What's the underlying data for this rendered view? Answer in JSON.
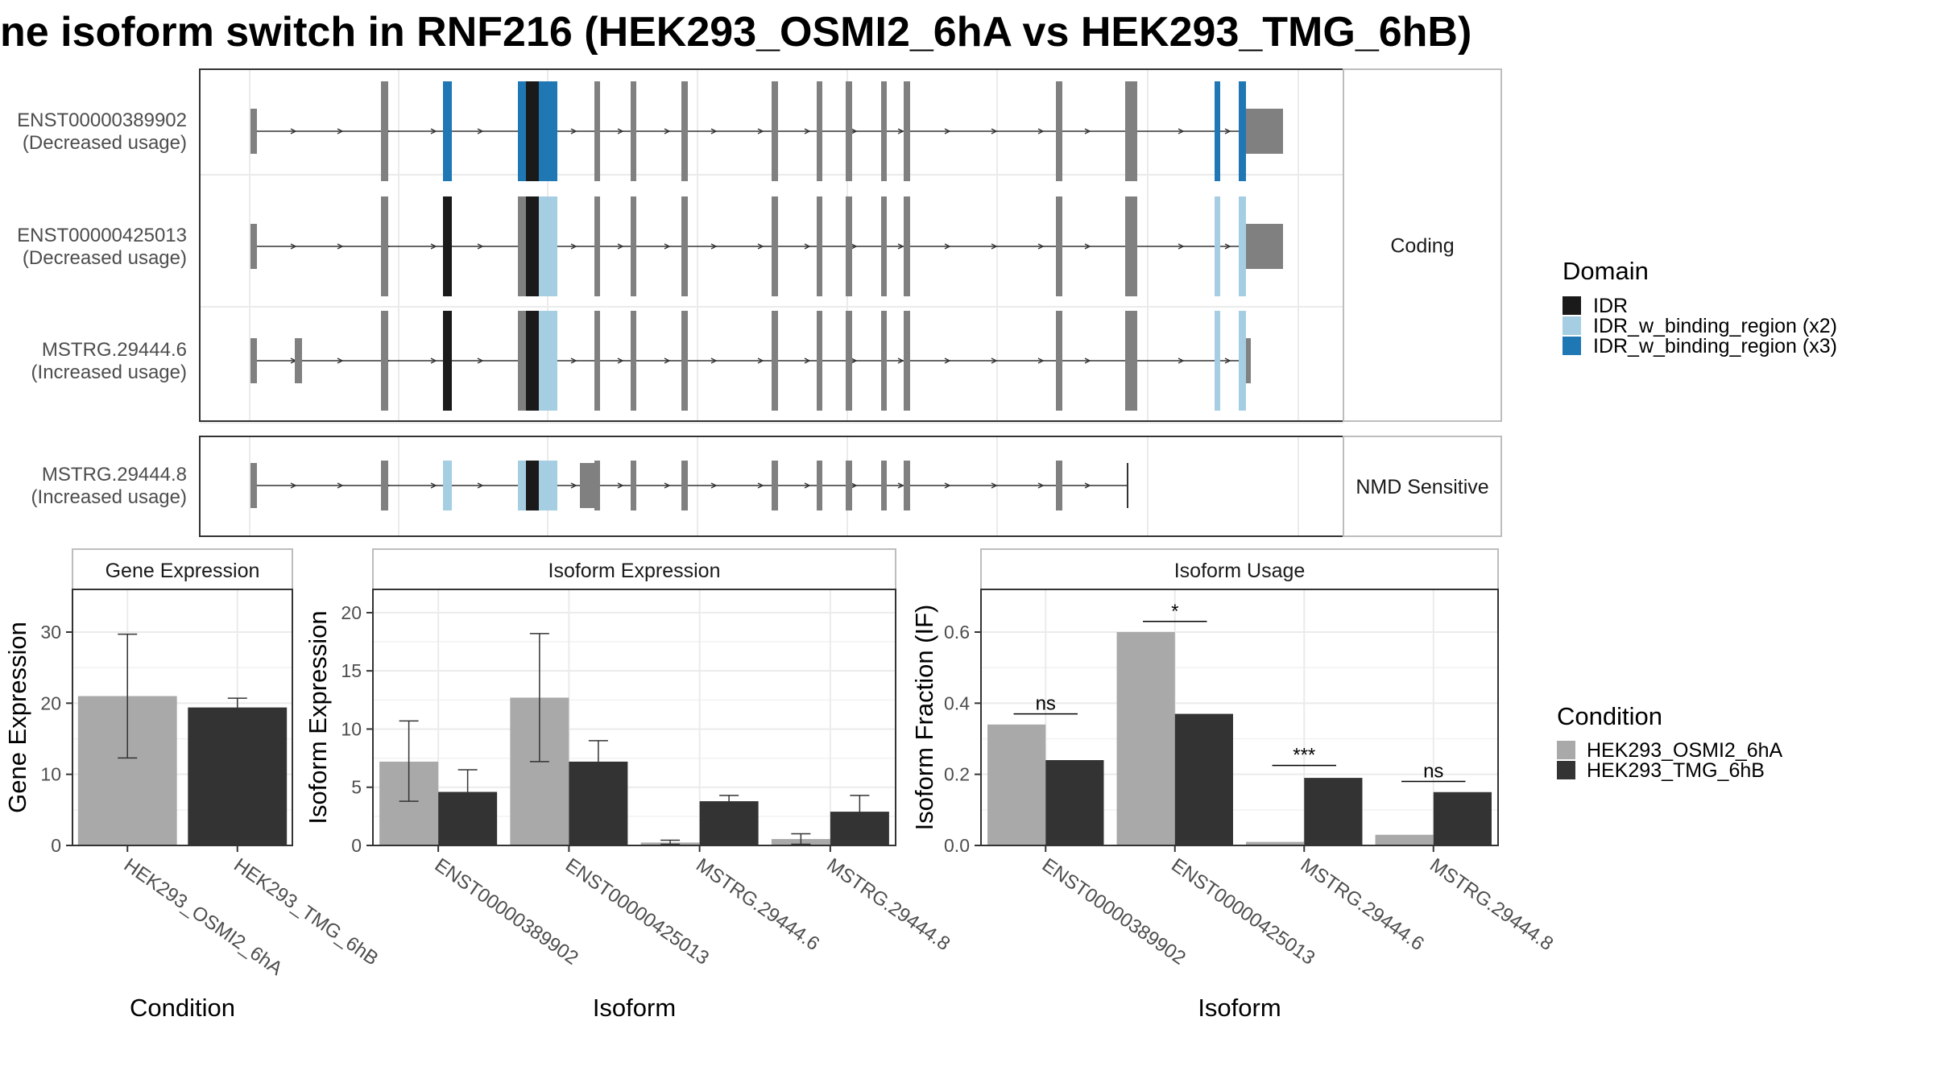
{
  "title": "ne isoform switch in RNF216 (HEK293_OSMI2_6hA vs HEK293_TMG_6hB)",
  "colors": {
    "exon": "#808080",
    "IDR": "#1a1a1a",
    "IDR_w_binding_region (x2)": "#a6cee3",
    "IDR_w_binding_region (x3)": "#1f78b4",
    "condition_a": "#a9a9a9",
    "condition_b": "#333333"
  },
  "transcript_panels": {
    "strip_labels": [
      "Coding",
      "NMD Sensitive"
    ],
    "transcripts": [
      {
        "id": "ENST00000389902",
        "usage": "(Decreased usage)",
        "group": "Coding",
        "utr3_wide": true,
        "domains": [
          {
            "exon": "e5",
            "domain": "IDR_w_binding_region (x3)"
          },
          {
            "exon": "e6a",
            "domain": "IDR_w_binding_region (x3)"
          },
          {
            "exon": "e6b",
            "domain": "IDR"
          },
          {
            "exon": "e6c",
            "domain": "IDR_w_binding_region (x3)"
          },
          {
            "exon": "e20",
            "domain": "IDR_w_binding_region (x3)"
          },
          {
            "exon": "e21",
            "domain": "IDR_w_binding_region (x3)"
          }
        ]
      },
      {
        "id": "ENST00000425013",
        "usage": "(Decreased usage)",
        "group": "Coding",
        "utr3_wide": true,
        "domains": [
          {
            "exon": "e5",
            "domain": "IDR"
          },
          {
            "exon": "e6b",
            "domain": "IDR"
          },
          {
            "exon": "e6c",
            "domain": "IDR_w_binding_region (x2)"
          },
          {
            "exon": "e20",
            "domain": "IDR_w_binding_region (x2)"
          },
          {
            "exon": "e21",
            "domain": "IDR_w_binding_region (x2)"
          }
        ]
      },
      {
        "id": "MSTRG.29444.6",
        "usage": "(Increased usage)",
        "group": "Coding",
        "utr3_wide": false,
        "extra_exon": true,
        "domains": [
          {
            "exon": "e5",
            "domain": "IDR"
          },
          {
            "exon": "e6b",
            "domain": "IDR"
          },
          {
            "exon": "e6c",
            "domain": "IDR_w_binding_region (x2)"
          },
          {
            "exon": "e20",
            "domain": "IDR_w_binding_region (x2)"
          },
          {
            "exon": "e21",
            "domain": "IDR_w_binding_region (x2)"
          }
        ]
      },
      {
        "id": "MSTRG.29444.8",
        "usage": "(Increased usage)",
        "group": "NMD Sensitive",
        "truncated": true,
        "domains": [
          {
            "exon": "e5",
            "domain": "IDR_w_binding_region (x2)"
          },
          {
            "exon": "e6a",
            "domain": "IDR_w_binding_region (x2)"
          },
          {
            "exon": "e6b",
            "domain": "IDR"
          },
          {
            "exon": "e6c",
            "domain": "IDR_w_binding_region (x2)"
          }
        ]
      }
    ]
  },
  "legends": {
    "domain": {
      "title": "Domain",
      "items": [
        "IDR",
        "IDR_w_binding_region (x2)",
        "IDR_w_binding_region (x3)"
      ]
    },
    "condition": {
      "title": "Condition",
      "items": [
        "HEK293_OSMI2_6hA",
        "HEK293_TMG_6hB"
      ]
    }
  },
  "chart_data": [
    {
      "type": "bar",
      "title": "Gene Expression",
      "xlabel": "Condition",
      "ylabel": "Gene Expression",
      "categories": [
        "HEK293_OSMI2_6hA",
        "HEK293_TMG_6hB"
      ],
      "values": [
        21.0,
        19.4
      ],
      "error_low": [
        12.3,
        18.1
      ],
      "error_high": [
        29.7,
        20.7
      ],
      "ylim": [
        0,
        36
      ],
      "yticks": [
        0,
        10,
        20,
        30
      ]
    },
    {
      "type": "bar",
      "title": "Isoform Expression",
      "xlabel": "Isoform",
      "ylabel": "Isoform Expression",
      "categories": [
        "ENST00000389902",
        "ENST00000425013",
        "MSTRG.29444.6",
        "MSTRG.29444.8"
      ],
      "series": [
        {
          "name": "HEK293_OSMI2_6hA",
          "values": [
            7.2,
            12.7,
            0.25,
            0.55
          ],
          "error_low": [
            3.8,
            7.2,
            0.1,
            0.1
          ],
          "error_high": [
            10.7,
            18.2,
            0.45,
            1.0
          ]
        },
        {
          "name": "HEK293_TMG_6hB",
          "values": [
            4.6,
            7.2,
            3.8,
            2.9
          ],
          "error_low": [
            2.8,
            5.4,
            3.3,
            1.5
          ],
          "error_high": [
            6.5,
            9.0,
            4.3,
            4.3
          ]
        }
      ],
      "ylim": [
        0,
        22
      ],
      "yticks": [
        0,
        5,
        10,
        15,
        20
      ]
    },
    {
      "type": "bar",
      "title": "Isoform Usage",
      "xlabel": "Isoform",
      "ylabel": "Isoform Fraction (IF)",
      "categories": [
        "ENST00000389902",
        "ENST00000425013",
        "MSTRG.29444.6",
        "MSTRG.29444.8"
      ],
      "series": [
        {
          "name": "HEK293_OSMI2_6hA",
          "values": [
            0.34,
            0.6,
            0.01,
            0.03
          ]
        },
        {
          "name": "HEK293_TMG_6hB",
          "values": [
            0.24,
            0.37,
            0.19,
            0.15
          ]
        }
      ],
      "significance": [
        "ns",
        "*",
        "***",
        "ns"
      ],
      "sig_levels": [
        0.37,
        0.63,
        0.225,
        0.18
      ],
      "ylim": [
        0,
        0.72
      ],
      "yticks": [
        "0.0",
        "0.2",
        "0.4",
        "0.6"
      ]
    }
  ]
}
